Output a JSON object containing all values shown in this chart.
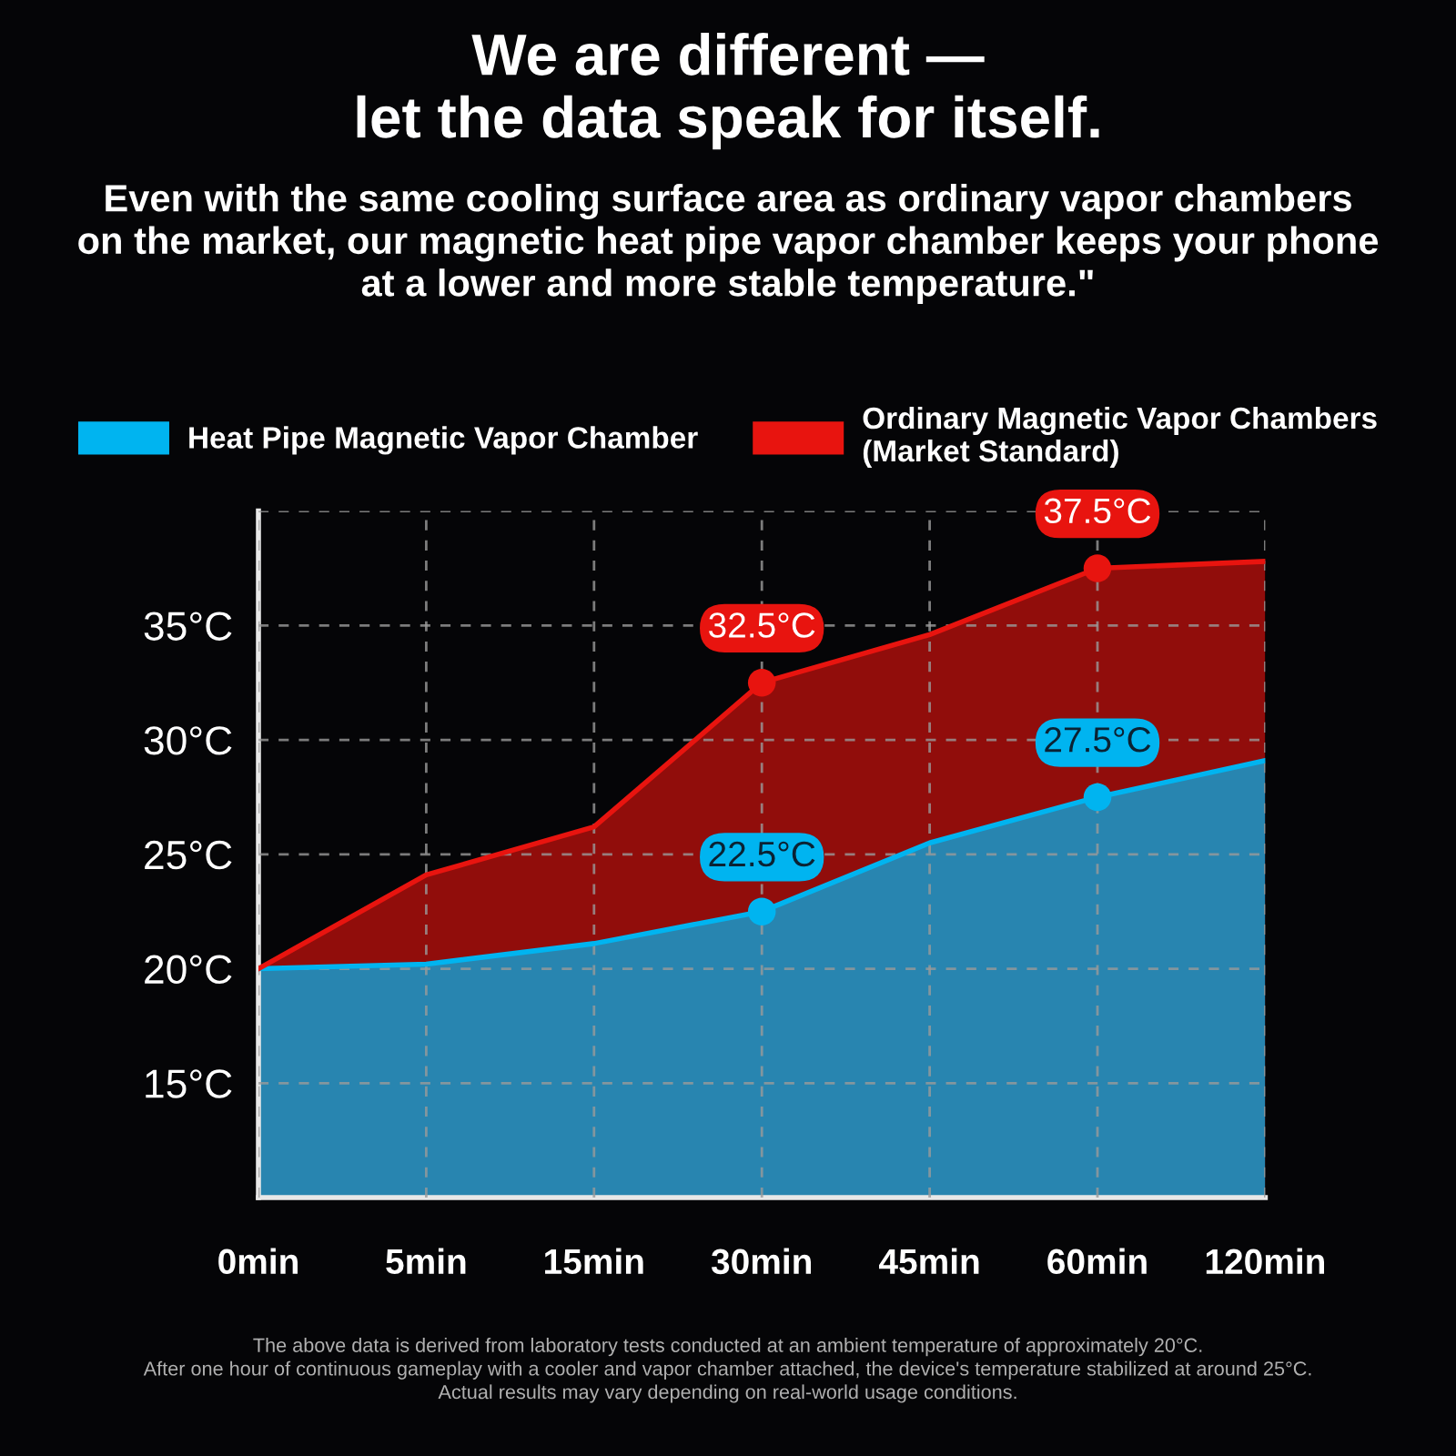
{
  "chart_data": {
    "type": "area",
    "title": "We are different —\nlet the data speak for itself.",
    "subtitle": "Even with the same cooling surface area as ordinary vapor chambers\non the market, our magnetic heat pipe vapor chamber keeps your phone\nat a lower and more stable temperature.\"",
    "categories": [
      "0min",
      "5min",
      "15min",
      "30min",
      "45min",
      "60min",
      "120min"
    ],
    "series": [
      {
        "name": "Heat Pipe Magnetic Vapor Chamber",
        "color": "#00b4f0",
        "values": [
          20,
          20.2,
          21.1,
          22.5,
          25.5,
          27.5,
          29.1
        ]
      },
      {
        "name": "Ordinary Magnetic Vapor Chambers\n(Market Standard)",
        "color": "#e8140f",
        "values": [
          20,
          24.1,
          26.2,
          32.5,
          34.6,
          37.5,
          37.8
        ]
      },
      {
        "type": "scatter",
        "marker": "circle",
        "color": "#00b4f0",
        "values": [
          null,
          null,
          null,
          22.5,
          null,
          27.5,
          null
        ],
        "value_labels": [
          null,
          null,
          null,
          "22.5°C",
          null,
          "27.5°C",
          null
        ]
      },
      {
        "type": "scatter",
        "marker": "circle",
        "color": "#e8140f",
        "values": [
          null,
          null,
          null,
          32.5,
          null,
          37.5,
          null
        ],
        "value_labels": [
          null,
          null,
          null,
          "32.5°C",
          null,
          "37.5°C",
          null
        ]
      }
    ],
    "ylim": [
      10,
      40
    ],
    "yticks": [
      {
        "value": 15,
        "label": "15°C"
      },
      {
        "value": 20,
        "label": "20°C"
      },
      {
        "value": 25,
        "label": "25°C"
      },
      {
        "value": 30,
        "label": "30°C"
      },
      {
        "value": 35,
        "label": "35°C"
      },
      {
        "value": 40,
        "label": null
      }
    ],
    "grid": true,
    "legend": "top",
    "annotations": [
      "The above data is derived from laboratory tests conducted at an ambient temperature of approximately 20°C.\nAfter one hour of continuous gameplay with a cooler and vapor chamber attached, the device's temperature stabilized at around 25°C.\nActual results may vary depending on real-world usage conditions."
    ]
  }
}
